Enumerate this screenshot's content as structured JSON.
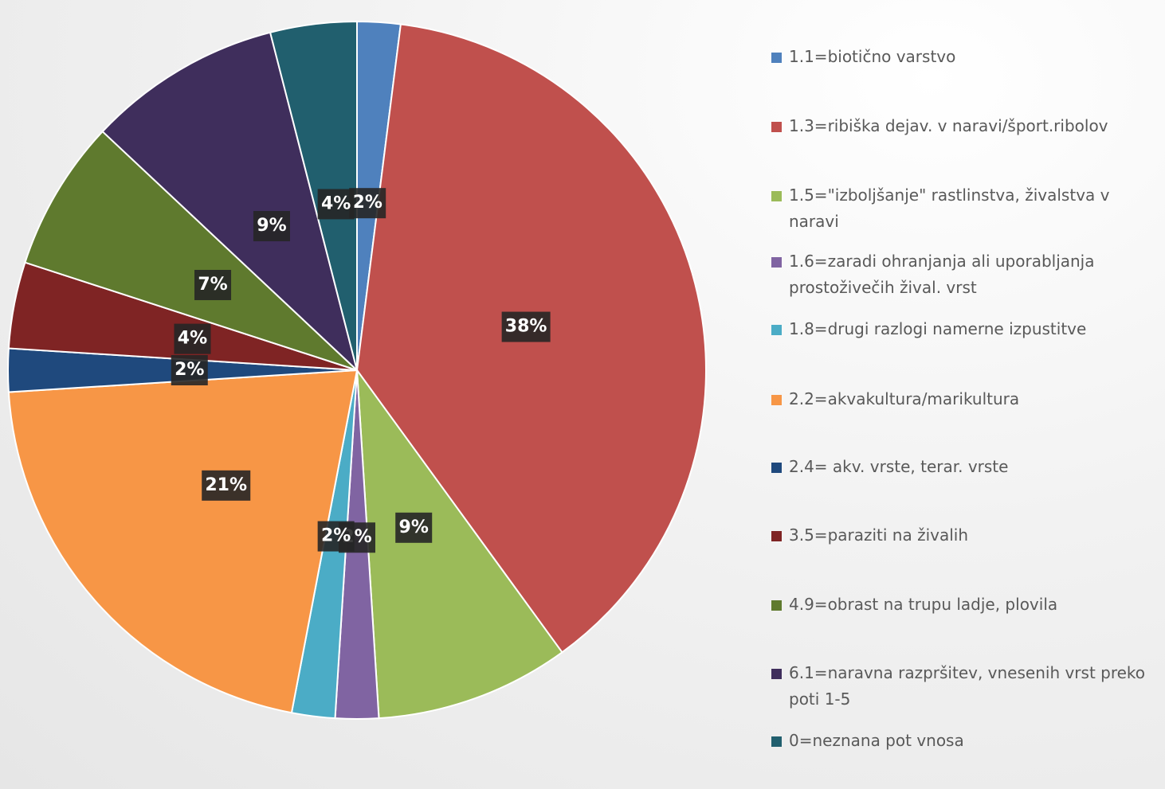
{
  "chart_data": {
    "type": "pie",
    "categories": [
      "1.1=biotično varstvo",
      "1.3=ribiška dejav. v naravi/šport.ribolov",
      "1.5=\"izboljšanje\" rastlinstva, živalstva v naravi",
      "1.6=zaradi ohranjanja ali uporabljanja prostoživečih žival. vrst",
      "1.8=drugi razlogi namerne izpustitve",
      "2.2=akvakultura/marikultura",
      "2.4= akv. vrste, terar. vrste",
      "3.5=paraziti na živalih",
      "4.9=obrast na trupu ladje, plovila",
      "6.1=naravna razpršitev, vnesenih vrst preko poti 1-5",
      "0=neznana pot vnosa"
    ],
    "values": [
      2,
      38,
      9,
      2,
      2,
      21,
      2,
      4,
      7,
      9,
      4
    ],
    "value_labels": [
      "2%",
      "38%",
      "9%",
      "2%",
      "2%",
      "21%",
      "2%",
      "4%",
      "7%",
      "9%",
      "4%"
    ],
    "colors": [
      "#4f81bd",
      "#c0504d",
      "#9bbb59",
      "#8064a2",
      "#4bacc6",
      "#f79646",
      "#1f497d",
      "#7f2424",
      "#5f7a2e",
      "#3f2e5c",
      "#215f6e"
    ],
    "legend": "right"
  }
}
